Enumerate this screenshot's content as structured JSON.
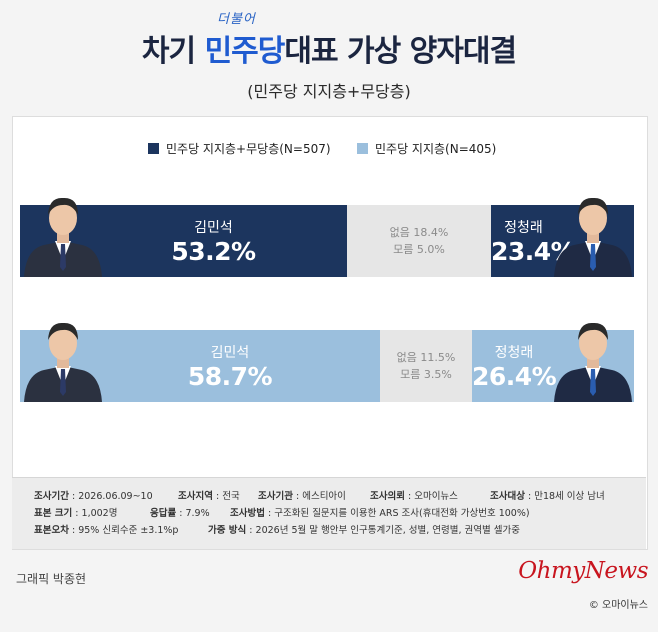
{
  "title": {
    "script": "더불어",
    "prefix": "차기 ",
    "accent": "민주당",
    "suffix": "대표 가상 양자대결"
  },
  "subtitle": "(민주당 지지층+무당층)",
  "colors": {
    "navy": "#1c355e",
    "light_blue": "#9bbfdd",
    "gray": "#e6e6e6",
    "logo_red": "#c8141e"
  },
  "icons": [
    "person-portrait-icon"
  ],
  "chart_data": {
    "type": "bar",
    "stacked": true,
    "orientation": "horizontal",
    "legend_position": "top-center",
    "legend": [
      "민주당 지지층+무당층(N=507)",
      "민주당 지지층(N=405)"
    ],
    "rows": [
      {
        "group": "민주당 지지층+무당층(N=507)",
        "candidates": [
          {
            "name": "김민석",
            "value": 53.2,
            "label": "53.2%"
          },
          {
            "name": "정청래",
            "value": 23.4,
            "label": "23.4%"
          }
        ],
        "none": {
          "value": 18.4,
          "label": "없음 18.4%"
        },
        "unknown": {
          "value": 5.0,
          "label": "모름 5.0%"
        }
      },
      {
        "group": "민주당 지지층(N=405)",
        "candidates": [
          {
            "name": "김민석",
            "value": 58.7,
            "label": "58.7%"
          },
          {
            "name": "정청래",
            "value": 26.4,
            "label": "26.4%"
          }
        ],
        "none": {
          "value": 11.5,
          "label": "없음 11.5%"
        },
        "unknown": {
          "value": 3.5,
          "label": "모름 3.5%"
        }
      }
    ]
  },
  "notes": {
    "period": {
      "label": "조사기간",
      "value": " : 2026.06.09~10"
    },
    "region": {
      "label": "조사지역",
      "value": " : 전국"
    },
    "agency": {
      "label": "조사기관",
      "value": " : 에스티아이"
    },
    "client": {
      "label": "조사의뢰",
      "value": " : 오마이뉴스"
    },
    "target": {
      "label": "조사대상",
      "value": " : 만18세 이상 남녀"
    },
    "sample": {
      "label": "표본 크기",
      "value": " : 1,002명"
    },
    "response": {
      "label": "응답률",
      "value": " : 7.9%"
    },
    "method": {
      "label": "조사방법",
      "value": " : 구조화된 질문지를 이용한 ARS 조사(휴대전화 가상번호 100%)"
    },
    "error": {
      "label": "표본오차",
      "value": " : 95% 신뢰수준 ±3.1%p"
    },
    "weight": {
      "label": "가중 방식",
      "value": " : 2026년 5월 말 행안부 인구통계기준, 성별, 연령별, 권역별 셀가중"
    }
  },
  "credit": "그래픽 박종현",
  "logo": "OhmyNews",
  "copyright": "© 오마이뉴스"
}
